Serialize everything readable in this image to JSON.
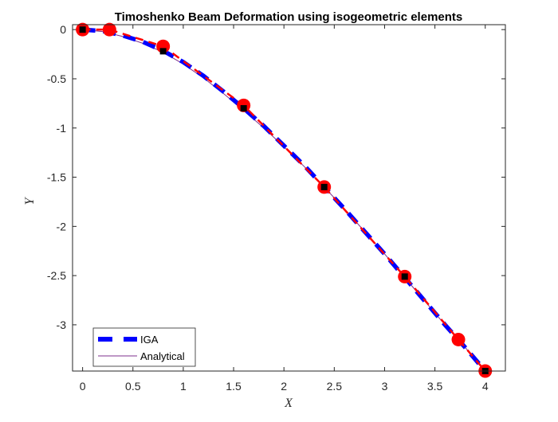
{
  "chart_data": {
    "type": "line",
    "title": "Timoshenko Beam Deformation using isogeometric elements",
    "xlabel": "X",
    "ylabel": "Y",
    "xlim": [
      -0.1,
      4.2
    ],
    "ylim": [
      -3.47,
      0.05
    ],
    "xticks": [
      0,
      0.5,
      1,
      1.5,
      2,
      2.5,
      3,
      3.5,
      4
    ],
    "xtick_labels": [
      "0",
      "0.5",
      "1",
      "1.5",
      "2",
      "2.5",
      "3",
      "3.5",
      "4"
    ],
    "yticks": [
      0,
      -0.5,
      -1,
      -1.5,
      -2,
      -2.5,
      -3
    ],
    "ytick_labels": [
      "0",
      "-0.5",
      "-1",
      "-1.5",
      "-2",
      "-2.5",
      "-3"
    ],
    "grid": false,
    "legend_position": "bottom-left",
    "series": [
      {
        "name": "IGA",
        "style": "thick-dashed",
        "color": "#0000ff",
        "x": [
          0,
          0.2,
          0.4,
          0.6,
          0.8,
          1.0,
          1.2,
          1.4,
          1.6,
          1.8,
          2.0,
          2.2,
          2.4,
          2.6,
          2.8,
          3.0,
          3.2,
          3.4,
          3.6,
          3.8,
          4.0
        ],
        "y": [
          0,
          -0.015,
          -0.06,
          -0.125,
          -0.215,
          -0.33,
          -0.47,
          -0.63,
          -0.8,
          -0.98,
          -1.18,
          -1.38,
          -1.6,
          -1.82,
          -2.05,
          -2.28,
          -2.52,
          -2.76,
          -3.0,
          -3.23,
          -3.47
        ]
      },
      {
        "name": "Analytical",
        "style": "thin-solid",
        "color": "#7e2f8e",
        "x": [
          0,
          0.2,
          0.4,
          0.6,
          0.8,
          1.0,
          1.2,
          1.4,
          1.6,
          1.8,
          2.0,
          2.2,
          2.4,
          2.6,
          2.8,
          3.0,
          3.2,
          3.4,
          3.6,
          3.8,
          4.0
        ],
        "y": [
          0,
          -0.02,
          -0.07,
          -0.14,
          -0.23,
          -0.35,
          -0.49,
          -0.65,
          -0.82,
          -1.0,
          -1.19,
          -1.39,
          -1.6,
          -1.82,
          -2.05,
          -2.28,
          -2.52,
          -2.76,
          -3.0,
          -3.23,
          -3.47
        ]
      },
      {
        "style": "dashed-red-with-circles",
        "color": "#ff0000",
        "x": [
          0,
          0.267,
          0.8,
          1.6,
          2.4,
          3.2,
          3.733,
          4.0
        ],
        "y": [
          0,
          0,
          -0.17,
          -0.77,
          -1.6,
          -2.51,
          -3.15,
          -3.47
        ]
      },
      {
        "style": "black-square-markers",
        "color": "#000000",
        "x": [
          0,
          0.8,
          1.6,
          2.4,
          3.2,
          4.0
        ],
        "y": [
          0,
          -0.22,
          -0.8,
          -1.6,
          -2.51,
          -3.47
        ]
      }
    ]
  }
}
